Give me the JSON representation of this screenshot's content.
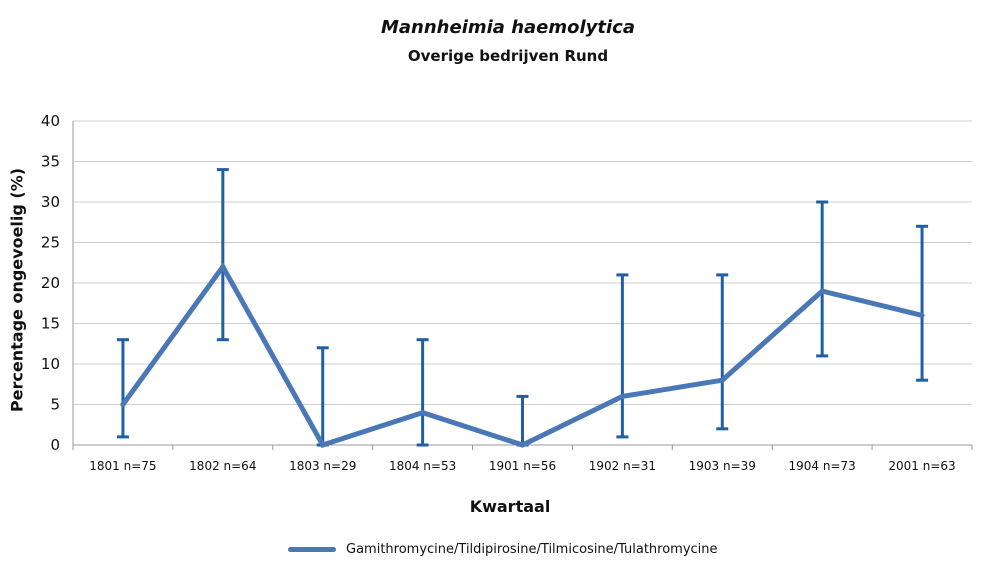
{
  "chart_data": {
    "type": "line",
    "title": "Mannheimia haemolytica",
    "subtitle": "Overige bedrijven Rund",
    "xlabel": "Kwartaal",
    "ylabel": "Percentage ongevoelig (%)",
    "categories": [
      "1801 n=75",
      "1802 n=64",
      "1803 n=29",
      "1804 n=53",
      "1901 n=56",
      "1902 n=31",
      "1903 n=39",
      "1904 n=73",
      "2001 n=63"
    ],
    "y_ticks": [
      "0",
      "5",
      "10",
      "15",
      "20",
      "25",
      "30",
      "35",
      "40"
    ],
    "ylim": [
      0,
      40
    ],
    "grid": true,
    "legend_position": "bottom",
    "series": [
      {
        "name": "Gamithromycine/Tildipirosine/Tilmicosine/Tulathromycine",
        "color": "#4a78b6",
        "errorbar_color": "#1f5fa6",
        "values": [
          5,
          22,
          0,
          4,
          0,
          6,
          8,
          19,
          16
        ],
        "lower": [
          1,
          13,
          0,
          0,
          0,
          1,
          2,
          11,
          8
        ],
        "upper": [
          13,
          34,
          12,
          13,
          6,
          21,
          21,
          30,
          27
        ]
      }
    ]
  }
}
